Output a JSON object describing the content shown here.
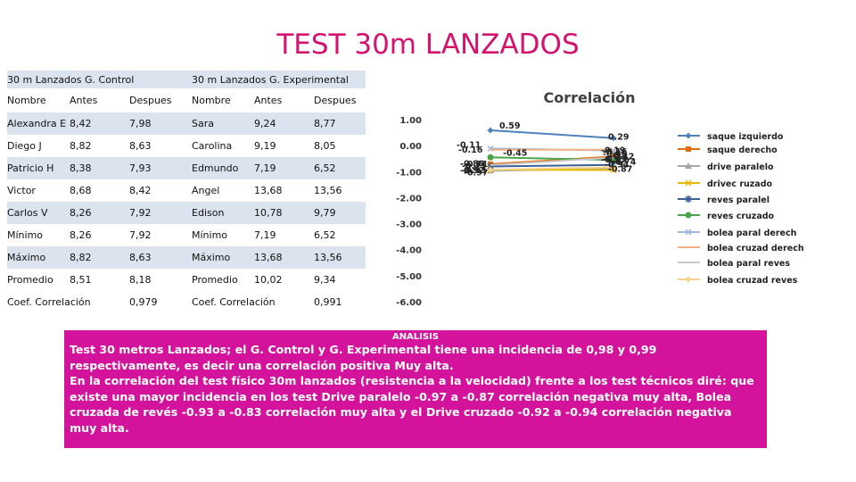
{
  "title": "TEST 30m LANZADOS",
  "table": {
    "group_control": "30 m Lanzados G. Control",
    "group_experimental": "30 m Lanzados G. Experimental",
    "headers": [
      "Nombre",
      "Antes",
      "Despues",
      "Nombre",
      "Antes",
      "Despues"
    ],
    "rows": [
      [
        "Alexandra E",
        "8,42",
        "7,98",
        "Sara",
        "9,24",
        "8,77"
      ],
      [
        "Diego J",
        "8,82",
        "8,63",
        "Carolina",
        "9,19",
        "8,05"
      ],
      [
        "Patricio H",
        "8,38",
        "7,93",
        "Edmundo",
        "7,19",
        "6,52"
      ],
      [
        "Victor",
        "8,68",
        "8,42",
        "Angel",
        "13,68",
        "13,56"
      ],
      [
        "Carlos V",
        "8,26",
        "7,92",
        "Edison",
        "10,78",
        "9,79"
      ],
      [
        "Mínimo",
        "8,26",
        "7,92",
        "Mínimo",
        "7,19",
        "6,52"
      ],
      [
        "Máximo",
        "8,82",
        "8,63",
        "Máximo",
        "13,68",
        "13,56"
      ],
      [
        "Promedio",
        "8,51",
        "8,18",
        "Promedio",
        "10,02",
        "9,34"
      ]
    ],
    "corr_label_control": "Coef. Correlación",
    "corr_value_control": "0,979",
    "corr_label_experimental": "Coef. Correlación",
    "corr_value_experimental": "0,991"
  },
  "chart_data": {
    "type": "line",
    "title": "Correlación",
    "x": [
      "",
      ""
    ],
    "ylim": [
      -6,
      1
    ],
    "yticks": [
      "1.00",
      "0.00",
      "-1.00",
      "-2.00",
      "-3.00",
      "-4.00",
      "-5.00",
      "-6.00"
    ],
    "legend_position": "right",
    "series": [
      {
        "name": "saque izquierdo",
        "values": [
          0.59,
          0.29
        ],
        "color": "#4f81bd",
        "marker": "diamond"
      },
      {
        "name": "saque derecho",
        "values": [
          -0.71,
          -0.42
        ],
        "color": "#e46c0a",
        "marker": "square"
      },
      {
        "name": "drive paralelo",
        "values": [
          -0.97,
          -0.87
        ],
        "color": "#a5a5a5",
        "marker": "triangle"
      },
      {
        "name": "drivec ruzado",
        "values": [
          -0.92,
          -0.94
        ],
        "color": "#e6b800",
        "marker": "x"
      },
      {
        "name": "reves paralel",
        "values": [
          -0.8,
          -0.74
        ],
        "color": "#3a5f95",
        "marker": "star"
      },
      {
        "name": "reves cruzado",
        "values": [
          -0.45,
          -0.55
        ],
        "color": "#4aa54a",
        "marker": "circle"
      },
      {
        "name": "bolea paral derech",
        "values": [
          -0.11,
          -0.19
        ],
        "color": "#9db7e0",
        "marker": "x"
      },
      {
        "name": "bolea cruzad derech",
        "values": [
          -0.16,
          -0.16
        ],
        "color": "#f5b183",
        "marker": "none"
      },
      {
        "name": "bolea paral reves",
        "values": [
          -0.75,
          -0.46
        ],
        "color": "#c8c8c8",
        "marker": "none"
      },
      {
        "name": "bolea cruzad reves",
        "values": [
          -0.93,
          -0.83
        ],
        "color": "#f7d28a",
        "marker": "diamond"
      }
    ],
    "point_labels": [
      {
        "series": 0,
        "point": 0,
        "text": "0.59"
      },
      {
        "series": 0,
        "point": 1,
        "text": "0.29"
      },
      {
        "series": 1,
        "point": 0,
        "text": "-0.71"
      },
      {
        "series": 1,
        "point": 1,
        "text": "-0.42"
      },
      {
        "series": 2,
        "point": 0,
        "text": "-0.97"
      },
      {
        "series": 2,
        "point": 1,
        "text": "-0.87"
      },
      {
        "series": 3,
        "point": 0,
        "text": "-0.92"
      },
      {
        "series": 3,
        "point": 1,
        "text": "-0.94"
      },
      {
        "series": 4,
        "point": 0,
        "text": "-0.80"
      },
      {
        "series": 4,
        "point": 1,
        "text": "-0.74"
      },
      {
        "series": 5,
        "point": 0,
        "text": "-0.45"
      },
      {
        "series": 5,
        "point": 1,
        "text": "-0.55"
      },
      {
        "series": 6,
        "point": 0,
        "text": "-0.11"
      },
      {
        "series": 6,
        "point": 1,
        "text": "-0.19"
      },
      {
        "series": 7,
        "point": 0,
        "text": "-0.16"
      },
      {
        "series": 7,
        "point": 1,
        "text": "-0.16"
      },
      {
        "series": 8,
        "point": 0,
        "text": "-0.75"
      },
      {
        "series": 8,
        "point": 1,
        "text": "-0.46"
      },
      {
        "series": 9,
        "point": 0,
        "text": "-0.93"
      },
      {
        "series": 9,
        "point": 1,
        "text": "-0.83"
      }
    ]
  },
  "analysis": {
    "heading": "ANALISIS",
    "text": "Test 30 metros Lanzados; el G. Control y G. Experimental tiene una incidencia de 0,98 y 0,99 respectivamente, es decir una correlación positiva Muy alta.\nEn la correlación del test físico 30m lanzados (resistencia a la velocidad) frente a los test técnicos diré: que existe una mayor incidencia en los test Drive paralelo -0.97 a -0.87 correlación negativa muy alta, Bolea cruzada de revés -0.93 a -0.83 correlación muy alta y el Drive cruzado -0.92 a -0.94 correlación negativa muy alta."
  }
}
